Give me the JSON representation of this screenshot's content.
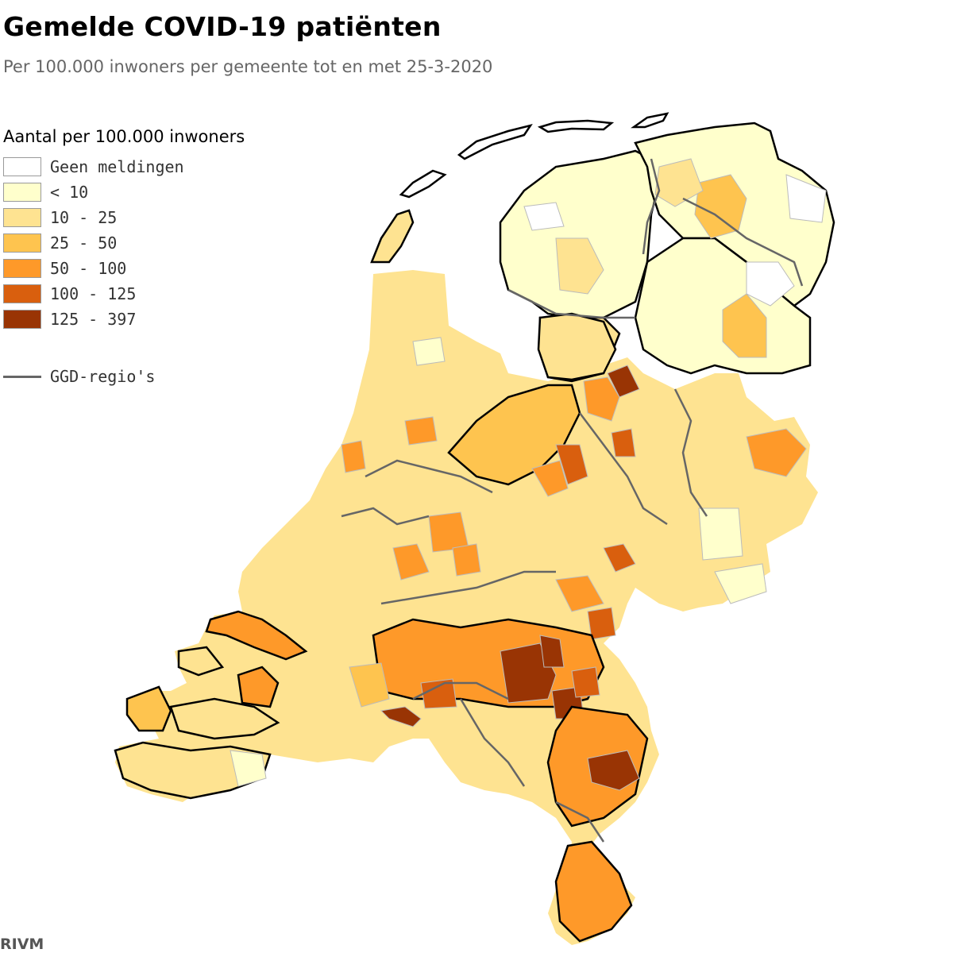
{
  "title": "Gemelde COVID-19 patiënten",
  "subtitle": "Per 100.000 inwoners per gemeente tot en met 25-3-2020",
  "legend": {
    "title": "Aantal per 100.000 inwoners",
    "items": [
      {
        "label": "Geen meldingen",
        "color": "#ffffff"
      },
      {
        "label": "< 10",
        "color": "#ffffcc"
      },
      {
        "label": "10 - 25",
        "color": "#fee391"
      },
      {
        "label": "25 - 50",
        "color": "#fec44f"
      },
      {
        "label": "50 - 100",
        "color": "#fe9929"
      },
      {
        "label": "100 - 125",
        "color": "#d95f0e"
      },
      {
        "label": "125 - 397",
        "color": "#993404"
      }
    ],
    "ggd_label": "GGD-regio's",
    "ggd_color": "#666666"
  },
  "source": "RIVM"
}
